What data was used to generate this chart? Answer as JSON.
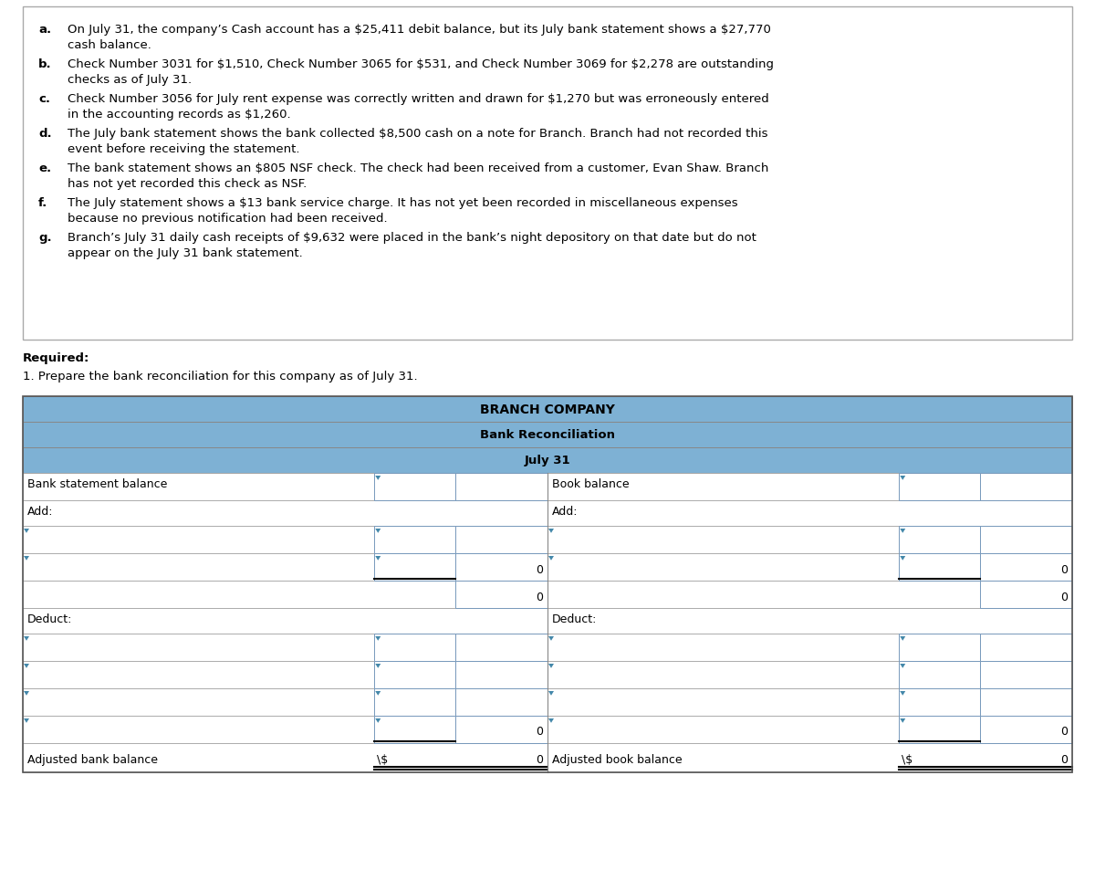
{
  "title_line1": "BRANCH COMPANY",
  "title_line2": "Bank Reconciliation",
  "title_line3": "July 31",
  "table_header_color": "#7EB1D4",
  "table_border": "#5B8DB0",
  "body_items": [
    {
      "label": "a.",
      "text1": "On July 31, the company’s Cash account has a $25,411 debit balance, but its July bank statement shows a $27,770",
      "text2": "cash balance."
    },
    {
      "label": "b.",
      "text1": "Check Number 3031 for $1,510, Check Number 3065 for $531, and Check Number 3069 for $2,278 are outstanding",
      "text2": "checks as of July 31."
    },
    {
      "label": "c.",
      "text1": "Check Number 3056 for July rent expense was correctly written and drawn for $1,270 but was erroneously entered",
      "text2": "in the accounting records as $1,260."
    },
    {
      "label": "d.",
      "text1": "The July bank statement shows the bank collected $8,500 cash on a note for Branch. Branch had not recorded this",
      "text2": "event before receiving the statement."
    },
    {
      "label": "e.",
      "text1": "The bank statement shows an $805 NSF check. The check had been received from a customer, Evan Shaw. Branch",
      "text2": "has not yet recorded this check as NSF."
    },
    {
      "label": "f.",
      "text1": "The July statement shows a $13 bank service charge. It has not yet been recorded in miscellaneous expenses",
      "text2": "because no previous notification had been received."
    },
    {
      "label": "g.",
      "text1": "Branch’s July 31 daily cash receipts of $9,632 were placed in the bank’s night depository on that date but do not",
      "text2": "appear on the July 31 bank statement."
    }
  ],
  "required_text": "Required:",
  "question_text": "1. Prepare the bank reconciliation for this company as of July 31."
}
